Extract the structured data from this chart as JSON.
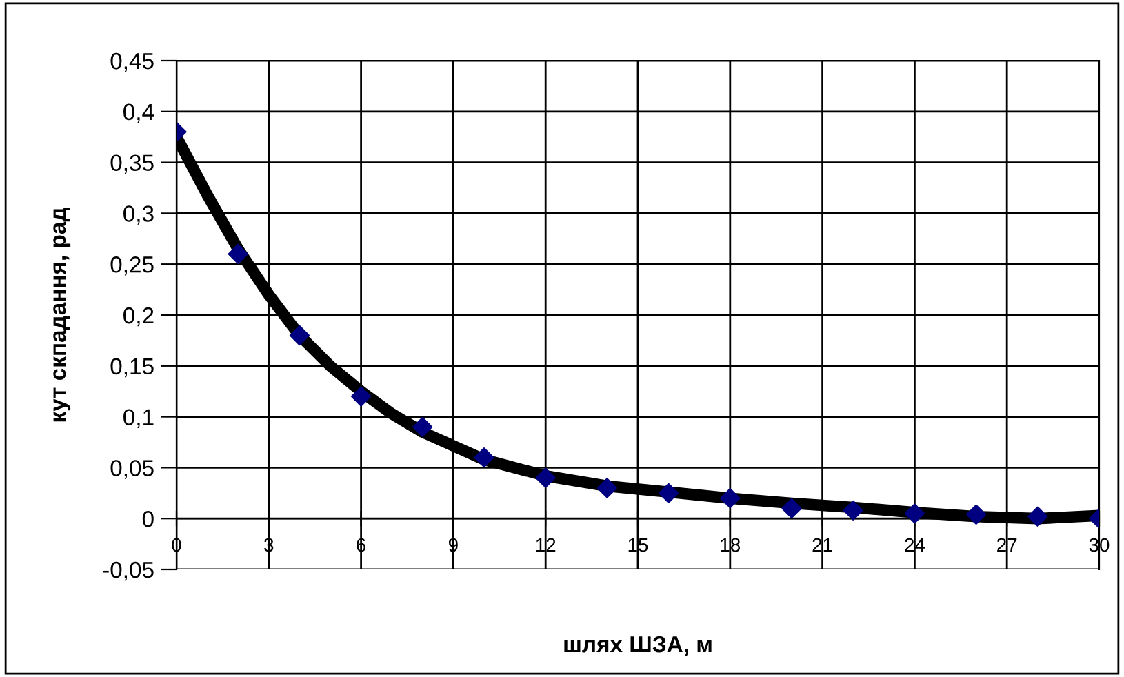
{
  "chart_data": {
    "type": "scatter",
    "xlabel": "шлях ШЗА, м",
    "ylabel": "кут скпадання, рад",
    "xlim": [
      0,
      30
    ],
    "xticks": [
      0,
      3,
      6,
      9,
      12,
      15,
      18,
      21,
      24,
      27,
      30
    ],
    "ylim": [
      -0.05,
      0.45
    ],
    "yticks": [
      {
        "value": -0.05,
        "label": "-0,05"
      },
      {
        "value": 0,
        "label": "0"
      },
      {
        "value": 0.05,
        "label": "0,05"
      },
      {
        "value": 0.1,
        "label": "0,1"
      },
      {
        "value": 0.15,
        "label": "0,15"
      },
      {
        "value": 0.2,
        "label": "0,2"
      },
      {
        "value": 0.25,
        "label": "0,25"
      },
      {
        "value": 0.3,
        "label": "0,3"
      },
      {
        "value": 0.35,
        "label": "0,35"
      },
      {
        "value": 0.4,
        "label": "0,4"
      },
      {
        "value": 0.45,
        "label": "0,45"
      }
    ],
    "grid": true,
    "legend": false,
    "series": [
      {
        "color": "#000080",
        "marker": "diamond",
        "x": [
          0,
          2,
          4,
          6,
          8,
          10,
          12,
          14,
          16,
          18,
          20,
          22,
          24,
          26,
          28,
          30
        ],
        "values": [
          0.38,
          0.26,
          0.18,
          0.12,
          0.09,
          0.06,
          0.04,
          0.03,
          0.025,
          0.02,
          0.01,
          0.008,
          0.005,
          0.004,
          0.002,
          0.0
        ]
      },
      {
        "type": "line",
        "color": "#000000",
        "line_style": "solid",
        "x": [
          0,
          1,
          2,
          3,
          4,
          5,
          6,
          7,
          8,
          10,
          12,
          14,
          16,
          18,
          20,
          22,
          24,
          26,
          28,
          30
        ],
        "values": [
          0.375,
          0.318,
          0.265,
          0.22,
          0.18,
          0.15,
          0.125,
          0.103,
          0.085,
          0.058,
          0.042,
          0.032,
          0.026,
          0.02,
          0.015,
          0.011,
          0.006,
          0.002,
          0.0,
          0.003
        ]
      }
    ]
  }
}
